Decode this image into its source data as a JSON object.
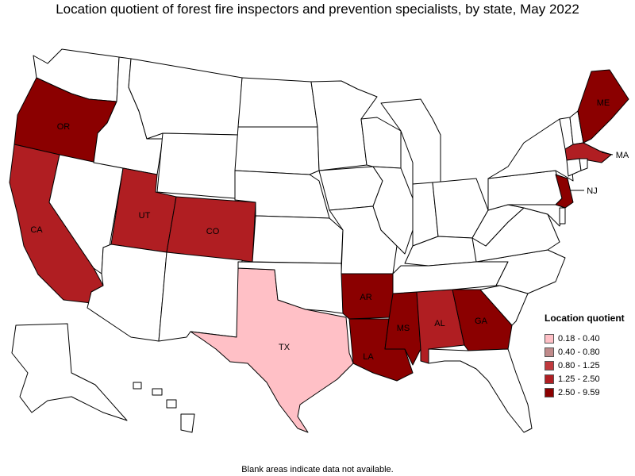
{
  "title": "Location quotient of forest fire inspectors and prevention specialists, by state, May 2022",
  "footnote": "Blank areas indicate data not available.",
  "legend": {
    "title": "Location quotient",
    "bins": [
      {
        "label": "0.18 - 0.40",
        "color": "#ffc0c6"
      },
      {
        "label": "0.40 - 0.80",
        "color": "#c08a8a"
      },
      {
        "label": "0.80 - 1.25",
        "color": "#c0393d"
      },
      {
        "label": "1.25 - 2.50",
        "color": "#b01e22"
      },
      {
        "label": "2.50 - 9.59",
        "color": "#8b0000"
      }
    ]
  },
  "states": {
    "WA": null,
    "OR": 4,
    "CA": 3,
    "NV": null,
    "ID": null,
    "MT": null,
    "WY": null,
    "UT": 3,
    "CO": 3,
    "AZ": null,
    "NM": null,
    "TX": 0,
    "ND": null,
    "SD": null,
    "NE": null,
    "KS": null,
    "OK": null,
    "MN": null,
    "IA": null,
    "MO": null,
    "AR": 4,
    "LA": 4,
    "WI": null,
    "IL": null,
    "MS": 4,
    "AL": 3,
    "GA": 4,
    "FL": null,
    "MI": null,
    "IN": null,
    "OH": null,
    "KY": null,
    "TN": null,
    "SC": null,
    "NC": null,
    "VA": null,
    "WV": null,
    "PA": null,
    "NY": null,
    "NJ": 4,
    "MD": null,
    "DE": null,
    "VT": null,
    "NH": null,
    "ME": 4,
    "MA": 3,
    "CT": null,
    "RI": null,
    "AK": null,
    "HI": null
  },
  "labels": {
    "OR": "OR",
    "CA": "CA",
    "UT": "UT",
    "CO": "CO",
    "TX": "TX",
    "AR": "AR",
    "LA": "LA",
    "MS": "MS",
    "AL": "AL",
    "GA": "GA",
    "ME": "ME",
    "MA": "MA",
    "NJ": "NJ"
  }
}
